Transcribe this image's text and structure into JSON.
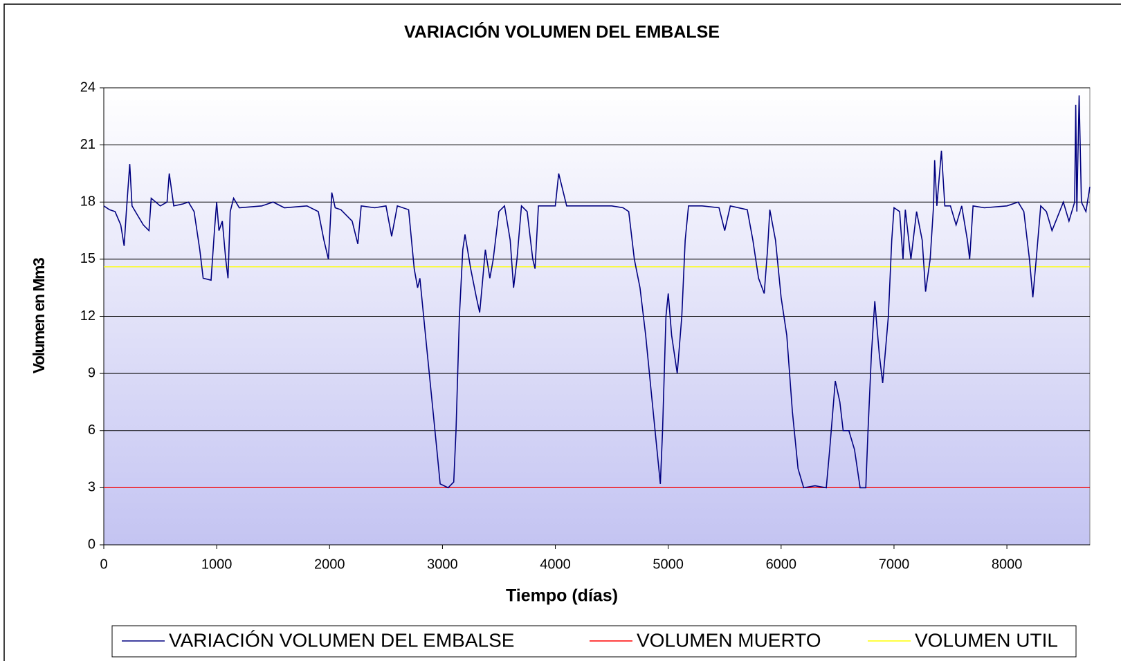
{
  "chart_data": {
    "type": "line",
    "title": "VARIACIÓN VOLUMEN DEL EMBALSE",
    "xlabel": "Tiempo (días)",
    "ylabel": "Volumen en Mm3",
    "xlim": [
      0,
      8735
    ],
    "xticks": [
      0,
      1000,
      2000,
      3000,
      4000,
      5000,
      6000,
      7000,
      8000
    ],
    "ylim": [
      0,
      24
    ],
    "yticks": [
      0,
      3,
      6,
      9,
      12,
      15,
      18,
      21,
      24
    ],
    "grid": true,
    "legend": "bottom",
    "series": [
      {
        "name": "VARIACIÓN VOLUMEN DEL EMBALSE",
        "color": "#000080",
        "x": [
          0,
          50,
          100,
          150,
          180,
          200,
          230,
          250,
          300,
          350,
          400,
          420,
          500,
          560,
          580,
          620,
          700,
          750,
          800,
          850,
          880,
          950,
          980,
          1000,
          1020,
          1050,
          1080,
          1100,
          1120,
          1150,
          1200,
          1400,
          1500,
          1600,
          1800,
          1900,
          1950,
          1990,
          2020,
          2050,
          2100,
          2200,
          2250,
          2280,
          2400,
          2500,
          2550,
          2600,
          2700,
          2750,
          2780,
          2800,
          2850,
          2900,
          2950,
          2980,
          3050,
          3100,
          3120,
          3150,
          3180,
          3200,
          3250,
          3300,
          3330,
          3350,
          3380,
          3420,
          3450,
          3500,
          3550,
          3600,
          3630,
          3660,
          3700,
          3750,
          3800,
          3820,
          3850,
          4000,
          4030,
          4100,
          4300,
          4500,
          4600,
          4650,
          4700,
          4750,
          4800,
          4850,
          4900,
          4930,
          4950,
          4980,
          5000,
          5030,
          5080,
          5120,
          5150,
          5180,
          5300,
          5450,
          5500,
          5550,
          5700,
          5750,
          5800,
          5850,
          5880,
          5900,
          5950,
          6000,
          6050,
          6100,
          6150,
          6200,
          6300,
          6400,
          6430,
          6480,
          6520,
          6550,
          6600,
          6650,
          6700,
          6750,
          6770,
          6800,
          6830,
          6870,
          6900,
          6950,
          6980,
          7000,
          7050,
          7080,
          7100,
          7150,
          7200,
          7250,
          7280,
          7320,
          7350,
          7360,
          7380,
          7420,
          7450,
          7500,
          7550,
          7600,
          7650,
          7670,
          7700,
          7800,
          8000,
          8100,
          8150,
          8200,
          8230,
          8260,
          8300,
          8350,
          8400,
          8500,
          8550,
          8600,
          8610,
          8620,
          8640,
          8660,
          8700,
          8735
        ],
        "values": [
          17.8,
          17.6,
          17.5,
          16.8,
          15.7,
          17.5,
          20,
          17.8,
          17.3,
          16.8,
          16.5,
          18.2,
          17.8,
          18.0,
          19.5,
          17.8,
          17.9,
          18.0,
          17.5,
          15.5,
          14.0,
          13.9,
          16.5,
          18.0,
          16.5,
          17,
          15,
          14,
          17.5,
          18.2,
          17.7,
          17.8,
          18.0,
          17.7,
          17.8,
          17.5,
          16.0,
          15.0,
          18.5,
          17.7,
          17.6,
          17.0,
          15.8,
          17.8,
          17.7,
          17.8,
          16.2,
          17.8,
          17.6,
          14.5,
          13.5,
          14,
          11,
          8,
          5,
          3.2,
          3.0,
          3.3,
          6,
          12,
          15.5,
          16.3,
          14.5,
          13,
          12.2,
          13.5,
          15.5,
          14,
          15,
          17.5,
          17.8,
          16,
          13.5,
          15,
          17.8,
          17.5,
          15,
          14.5,
          17.8,
          17.8,
          19.5,
          17.8,
          17.8,
          17.8,
          17.7,
          17.5,
          15,
          13.5,
          11,
          8,
          5,
          3.2,
          6,
          12,
          13.2,
          11,
          9,
          12,
          16,
          17.8,
          17.8,
          17.7,
          16.5,
          17.8,
          17.6,
          16,
          14,
          13.2,
          15.5,
          17.6,
          16,
          13,
          11,
          7,
          4,
          3.0,
          3.1,
          3.0,
          5,
          8.6,
          7.5,
          6,
          6,
          5,
          3.0,
          3.0,
          6,
          10,
          12.8,
          10,
          8.5,
          12,
          16,
          17.7,
          17.5,
          15,
          17.6,
          15,
          17.5,
          16,
          13.3,
          15,
          17.8,
          20.2,
          17.8,
          20.7,
          17.8,
          17.8,
          16.8,
          17.8,
          16,
          15,
          17.8,
          17.7,
          17.8,
          18,
          17.5,
          15,
          13,
          15,
          17.8,
          17.5,
          16.5,
          18,
          17,
          18,
          23.1,
          17.5,
          23.6,
          18,
          17.5,
          18.8
        ]
      },
      {
        "name": "VOLUMEN MUERTO",
        "color": "#ff0000",
        "x": [
          0,
          8735
        ],
        "values": [
          3,
          3
        ]
      },
      {
        "name": "VOLUMEN UTIL",
        "color": "#ffff00",
        "x": [
          0,
          8735
        ],
        "values": [
          14.6,
          14.6
        ]
      }
    ]
  }
}
